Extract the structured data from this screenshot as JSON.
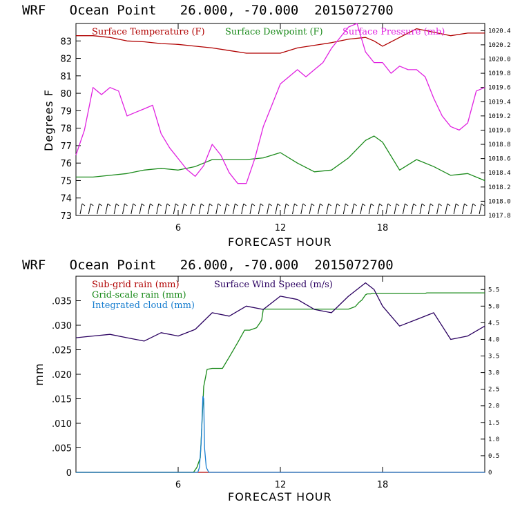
{
  "chart_data": [
    {
      "type": "line",
      "title": "WRF   Ocean Point   26.000, -70.000  2015072700",
      "xlabel": "FORECAST HOUR",
      "ylabel": "Degrees F",
      "xlim": [
        0,
        24
      ],
      "ylim": [
        73,
        84
      ],
      "xticks": [
        6,
        12,
        18
      ],
      "xtick_labels": [
        "6",
        "12",
        "18"
      ],
      "yticks": [
        73,
        74,
        75,
        76,
        77,
        78,
        79,
        80,
        81,
        82,
        83
      ],
      "ytick_labels": [
        "73",
        "74",
        "75",
        "76",
        "77",
        "78",
        "79",
        "80",
        "81",
        "82",
        "83"
      ],
      "y2lim": [
        1017.8,
        1020.5
      ],
      "y2ticks": [
        1017.8,
        1018.0,
        1018.2,
        1018.4,
        1018.6,
        1018.8,
        1019.0,
        1019.2,
        1019.4,
        1019.6,
        1019.8,
        1020.0,
        1020.2,
        1020.4
      ],
      "y2tick_labels": [
        "1017.8",
        "1018.0",
        "1018.2",
        "1018.4",
        "1018.6",
        "1018.8",
        "1019.0",
        "1019.2",
        "1019.4",
        "1019.6",
        "1019.8",
        "1020.0",
        "1020.2",
        "1020.4"
      ],
      "wind_barbs": true,
      "series": [
        {
          "name": "Surface Temperature (F)",
          "color": "#b00000",
          "axis": "left",
          "x": [
            0,
            1,
            2,
            3,
            4,
            5,
            6,
            7,
            8,
            9,
            10,
            11,
            12,
            13,
            14,
            15,
            16,
            17,
            17.5,
            18,
            19,
            20,
            21,
            22,
            23,
            24
          ],
          "values": [
            83.3,
            83.3,
            83.2,
            83.0,
            82.95,
            82.85,
            82.8,
            82.7,
            82.6,
            82.45,
            82.3,
            82.3,
            82.3,
            82.6,
            82.75,
            82.9,
            83.1,
            83.2,
            83.0,
            82.7,
            83.2,
            83.7,
            83.5,
            83.3,
            83.45,
            83.45
          ]
        },
        {
          "name": "Surface Dewpoint (F)",
          "color": "#1a8a1a",
          "axis": "left",
          "x": [
            0,
            1,
            2,
            3,
            4,
            5,
            6,
            7,
            8,
            9,
            10,
            11,
            12,
            13,
            14,
            15,
            16,
            17,
            17.5,
            18,
            19,
            20,
            21,
            22,
            23,
            24
          ],
          "values": [
            75.2,
            75.2,
            75.3,
            75.4,
            75.6,
            75.7,
            75.6,
            75.8,
            76.2,
            76.2,
            76.2,
            76.3,
            76.6,
            76.0,
            75.5,
            75.6,
            76.3,
            77.3,
            77.55,
            77.2,
            75.6,
            76.2,
            75.8,
            75.3,
            75.4,
            75.0
          ]
        },
        {
          "name": "Surface Pressure (mb)",
          "color": "#e020e0",
          "axis": "right",
          "x": [
            0,
            0.5,
            1,
            1.5,
            2,
            2.5,
            3,
            3.5,
            4,
            4.5,
            5,
            5.5,
            6,
            6.5,
            7,
            7.5,
            8,
            8.5,
            9,
            9.5,
            10,
            10.5,
            11,
            11.5,
            12,
            12.5,
            13,
            13.5,
            14,
            14.5,
            15,
            15.5,
            16,
            16.5,
            17,
            17.5,
            18,
            18.5,
            19,
            19.5,
            20,
            20.5,
            21,
            21.5,
            22,
            22.5,
            23,
            23.5,
            24
          ],
          "values": [
            1018.65,
            1019.0,
            1019.6,
            1019.5,
            1019.6,
            1019.55,
            1019.2,
            1019.25,
            1019.3,
            1019.35,
            1018.95,
            1018.75,
            1018.6,
            1018.45,
            1018.35,
            1018.5,
            1018.8,
            1018.65,
            1018.4,
            1018.25,
            1018.25,
            1018.6,
            1019.05,
            1019.35,
            1019.65,
            1019.75,
            1019.85,
            1019.75,
            1019.85,
            1019.95,
            1020.15,
            1020.3,
            1020.45,
            1020.5,
            1020.1,
            1019.95,
            1019.95,
            1019.8,
            1019.9,
            1019.85,
            1019.85,
            1019.75,
            1019.45,
            1019.2,
            1019.05,
            1019.0,
            1019.1,
            1019.55,
            1019.6
          ]
        }
      ]
    },
    {
      "type": "line",
      "title": "WRF   Ocean Point   26.000, -70.000  2015072700",
      "xlabel": "FORECAST HOUR",
      "ylabel": "mm",
      "xlim": [
        0,
        24
      ],
      "ylim": [
        0,
        0.04
      ],
      "xticks": [
        6,
        12,
        18
      ],
      "xtick_labels": [
        "6",
        "12",
        "18"
      ],
      "yticks": [
        0,
        0.005,
        0.01,
        0.015,
        0.02,
        0.025,
        0.03,
        0.035
      ],
      "ytick_labels": [
        "0",
        ".005",
        ".010",
        ".015",
        ".020",
        ".025",
        ".030",
        ".035"
      ],
      "y2lim": [
        0,
        5.9
      ],
      "y2ticks": [
        0,
        0.5,
        1.0,
        1.5,
        2.0,
        2.5,
        3.0,
        3.5,
        4.0,
        4.5,
        5.0,
        5.5
      ],
      "y2tick_labels": [
        "0",
        "0.5",
        "1.0",
        "1.5",
        "2.0",
        "2.5",
        "3.0",
        "3.5",
        "4.0",
        "4.5",
        "5.0",
        "5.5"
      ],
      "series": [
        {
          "name": "Sub-grid rain (mm)",
          "color": "#b00000",
          "axis": "left",
          "x": [
            0,
            24
          ],
          "values": [
            0,
            0
          ]
        },
        {
          "name": "Grid-scale rain (mm)",
          "color": "#1a8a1a",
          "axis": "left",
          "x": [
            0,
            6.9,
            7.1,
            7.3,
            7.5,
            7.7,
            8.0,
            8.6,
            9.0,
            9.5,
            9.9,
            10.2,
            10.6,
            10.9,
            11.0,
            16.0,
            16.4,
            16.6,
            16.8,
            17.0,
            17.1,
            17.3,
            17.4,
            20.5,
            20.6,
            24
          ],
          "values": [
            0,
            0,
            0.001,
            0.003,
            0.0175,
            0.021,
            0.0212,
            0.0212,
            0.0235,
            0.0265,
            0.029,
            0.029,
            0.0295,
            0.031,
            0.0333,
            0.0333,
            0.0338,
            0.0346,
            0.0352,
            0.0362,
            0.0364,
            0.0364,
            0.0365,
            0.0365,
            0.0366,
            0.0366
          ]
        },
        {
          "name": "Integrated cloud (mm)",
          "color": "#1a7fd0",
          "axis": "left",
          "x": [
            0,
            7.15,
            7.25,
            7.35,
            7.45,
            7.5,
            7.55,
            7.65,
            7.8,
            24
          ],
          "values": [
            0,
            0,
            0.001,
            0.006,
            0.0155,
            0.015,
            0.005,
            0.001,
            0,
            0
          ]
        },
        {
          "name": "Surface Wind Speed (m/s)",
          "color": "#2a0060",
          "axis": "right",
          "x": [
            0,
            1,
            2,
            3,
            4,
            5,
            6,
            7,
            8,
            9,
            10,
            11,
            12,
            13,
            14,
            15,
            16,
            17,
            17.5,
            18,
            19,
            20,
            21,
            22,
            23,
            24
          ],
          "values": [
            4.05,
            4.1,
            4.15,
            4.05,
            3.95,
            4.2,
            4.1,
            4.3,
            4.8,
            4.7,
            5.0,
            4.9,
            5.3,
            5.2,
            4.9,
            4.8,
            5.3,
            5.7,
            5.5,
            5.0,
            4.4,
            4.6,
            4.8,
            4.0,
            4.1,
            4.4
          ]
        }
      ]
    }
  ]
}
